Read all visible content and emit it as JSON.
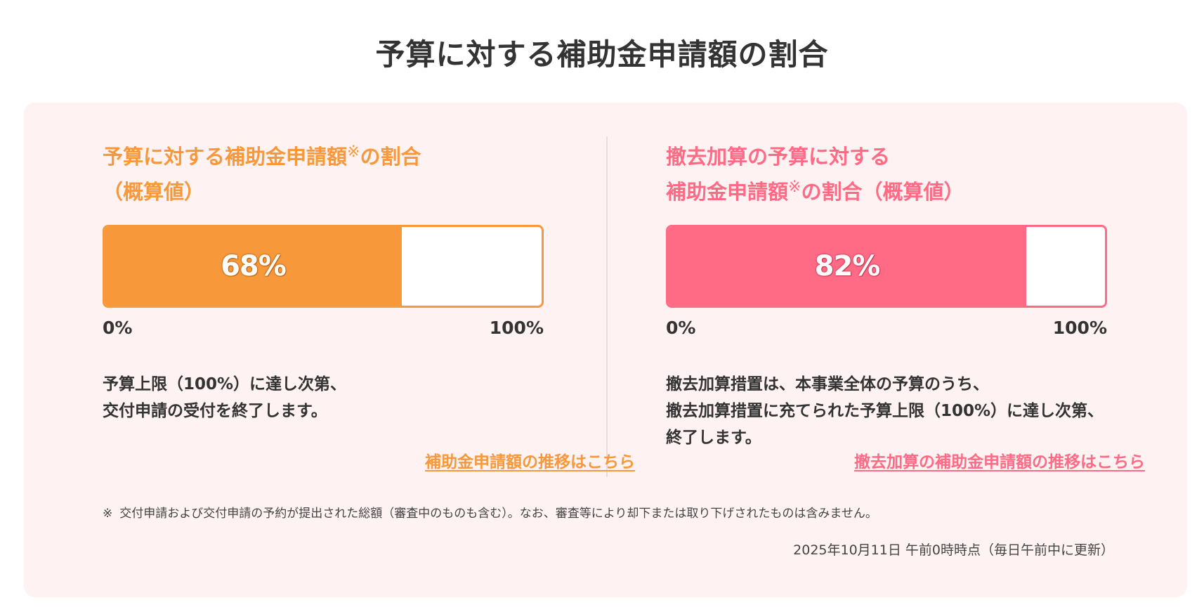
{
  "page": {
    "title": "予算に対する補助金申請額の割合"
  },
  "colors": {
    "orange": "#f7983a",
    "pink": "#ff6b85",
    "panel_bg": "#fef2f2",
    "text": "#333333"
  },
  "left": {
    "title_line1": "予算に対する補助金申請額",
    "title_mark": "※",
    "title_line1_suffix": "の割合",
    "title_line2": "（概算値）",
    "percent": 68,
    "percent_label": "68%",
    "scale_min": "0%",
    "scale_max": "100%",
    "desc_lines": [
      "予算上限（100%）に達し次第、",
      "交付申請の受付を終了します。"
    ],
    "link_label": "補助金申請額の推移はこちら"
  },
  "right": {
    "title_line1": "撤去加算の予算に対する",
    "title_line2_prefix": "補助金申請額",
    "title_mark": "※",
    "title_line2_suffix": "の割合（概算値）",
    "percent": 82,
    "percent_label": "82%",
    "scale_min": "0%",
    "scale_max": "100%",
    "desc_lines": [
      "撤去加算措置は、本事業全体の予算のうち、",
      "撤去加算措置に充てられた予算上限（100%）に達し次第、",
      "終了します。"
    ],
    "link_label": "撤去加算の補助金申請額の推移はこちら"
  },
  "footnote": {
    "mark": "※",
    "text": "交付申請および交付申請の予約が提出された総額（審査中のものも含む）。なお、審査等により却下または取り下げされたものは含みません。"
  },
  "timestamp": "2025年10月11日 午前0時時点（毎日午前中に更新）"
}
